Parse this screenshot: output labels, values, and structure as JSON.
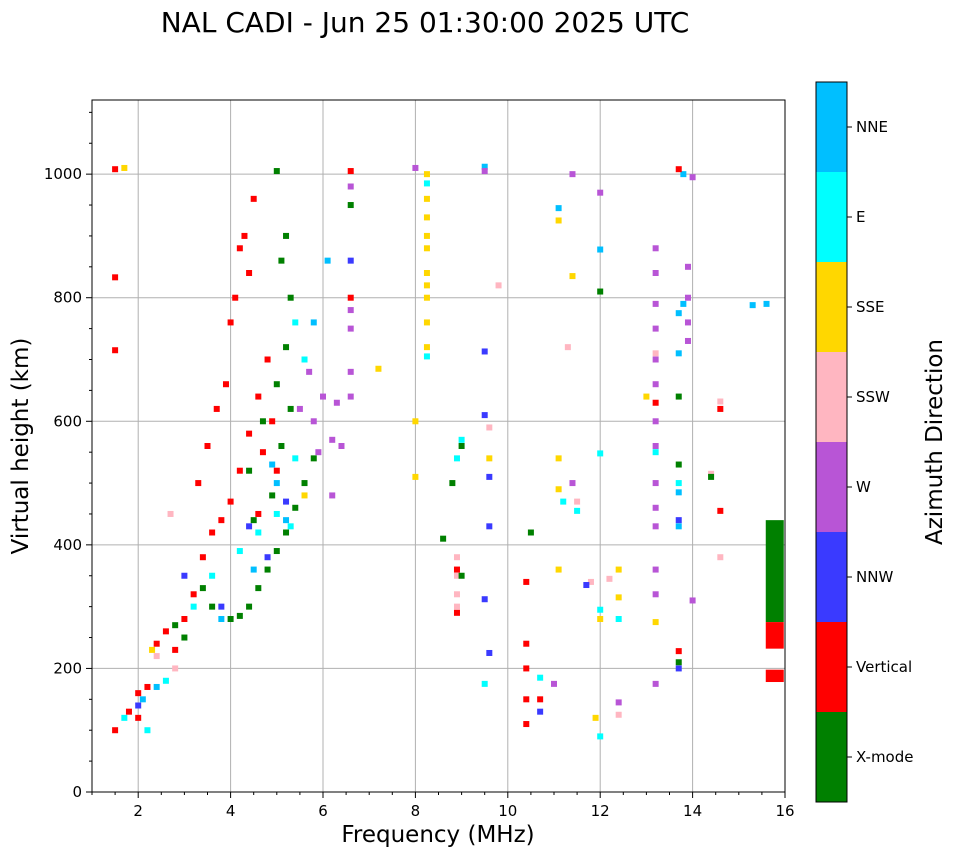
{
  "chart_data": {
    "type": "scatter",
    "title": "NAL CADI - Jun 25 01:30:00 2025 UTC",
    "xlabel": "Frequency (MHz)",
    "ylabel": "Virtual height (km)",
    "xlim": [
      1,
      16
    ],
    "ylim": [
      0,
      1120
    ],
    "xticks": [
      2,
      4,
      6,
      8,
      10,
      12,
      14,
      16
    ],
    "yticks": [
      0,
      200,
      400,
      600,
      800,
      1000
    ],
    "grid": true,
    "colorbar": {
      "label": "Azimuth Direction",
      "categories": [
        {
          "name": "X-mode",
          "color": "#008000"
        },
        {
          "name": "Vertical",
          "color": "#ff0000"
        },
        {
          "name": "NNW",
          "color": "#3a3aff"
        },
        {
          "name": "W",
          "color": "#b855d6"
        },
        {
          "name": "SSW",
          "color": "#ffb6c1"
        },
        {
          "name": "SSE",
          "color": "#ffd700"
        },
        {
          "name": "E",
          "color": "#00ffff"
        },
        {
          "name": "NNE",
          "color": "#00bfff"
        }
      ]
    },
    "series": [
      {
        "name": "X-mode",
        "points": [
          [
            4.0,
            280
          ],
          [
            4.2,
            285
          ],
          [
            4.4,
            300
          ],
          [
            4.6,
            330
          ],
          [
            4.8,
            360
          ],
          [
            5.0,
            390
          ],
          [
            5.2,
            420
          ],
          [
            5.4,
            460
          ],
          [
            5.6,
            500
          ],
          [
            5.8,
            540
          ],
          [
            4.5,
            440
          ],
          [
            4.9,
            480
          ],
          [
            5.1,
            560
          ],
          [
            5.3,
            620
          ],
          [
            4.4,
            520
          ],
          [
            4.7,
            600
          ],
          [
            5.0,
            660
          ],
          [
            5.2,
            720
          ],
          [
            5.3,
            800
          ],
          [
            5.1,
            860
          ],
          [
            5.2,
            900
          ],
          [
            2.8,
            270
          ],
          [
            3.0,
            250
          ],
          [
            3.6,
            300
          ],
          [
            3.4,
            330
          ],
          [
            9.0,
            560
          ],
          [
            9.0,
            350
          ],
          [
            8.8,
            500
          ],
          [
            8.6,
            410
          ],
          [
            10.5,
            420
          ],
          [
            12.0,
            810
          ],
          [
            13.7,
            640
          ],
          [
            13.7,
            530
          ],
          [
            13.7,
            210
          ],
          [
            14.4,
            510
          ],
          [
            6.6,
            950
          ],
          [
            5.0,
            1005
          ]
        ]
      },
      {
        "name": "Vertical",
        "points": [
          [
            1.5,
            100
          ],
          [
            1.5,
            715
          ],
          [
            1.5,
            833
          ],
          [
            1.5,
            1008
          ],
          [
            1.8,
            130
          ],
          [
            2.0,
            120
          ],
          [
            2.2,
            170
          ],
          [
            2.4,
            240
          ],
          [
            2.6,
            260
          ],
          [
            2.8,
            230
          ],
          [
            3.0,
            280
          ],
          [
            3.2,
            320
          ],
          [
            3.4,
            380
          ],
          [
            3.6,
            420
          ],
          [
            3.8,
            440
          ],
          [
            4.0,
            470
          ],
          [
            4.2,
            520
          ],
          [
            4.4,
            580
          ],
          [
            4.6,
            640
          ],
          [
            4.8,
            700
          ],
          [
            4.2,
            880
          ],
          [
            4.3,
            900
          ],
          [
            4.5,
            960
          ],
          [
            4.1,
            800
          ],
          [
            4.4,
            840
          ],
          [
            4.0,
            760
          ],
          [
            3.9,
            660
          ],
          [
            3.5,
            560
          ],
          [
            3.7,
            620
          ],
          [
            3.3,
            500
          ],
          [
            4.6,
            450
          ],
          [
            4.7,
            550
          ],
          [
            4.9,
            600
          ],
          [
            5.0,
            520
          ],
          [
            2.0,
            160
          ],
          [
            6.6,
            800
          ],
          [
            6.6,
            1005
          ],
          [
            8.9,
            290
          ],
          [
            8.9,
            360
          ],
          [
            10.4,
            340
          ],
          [
            10.4,
            240
          ],
          [
            10.4,
            200
          ],
          [
            10.4,
            150
          ],
          [
            10.4,
            110
          ],
          [
            10.7,
            150
          ],
          [
            13.2,
            630
          ],
          [
            14.6,
            620
          ],
          [
            14.6,
            455
          ],
          [
            13.7,
            228
          ],
          [
            13.7,
            1008
          ]
        ]
      },
      {
        "name": "NNW",
        "points": [
          [
            6.6,
            860
          ],
          [
            9.5,
            610
          ],
          [
            9.6,
            510
          ],
          [
            9.6,
            430
          ],
          [
            9.5,
            312
          ],
          [
            9.6,
            225
          ],
          [
            9.5,
            713
          ],
          [
            10.7,
            130
          ],
          [
            11.7,
            335
          ],
          [
            13.7,
            440
          ],
          [
            13.7,
            200
          ],
          [
            2.0,
            140
          ],
          [
            3.0,
            350
          ],
          [
            4.4,
            430
          ],
          [
            5.2,
            470
          ],
          [
            4.8,
            380
          ],
          [
            3.8,
            300
          ]
        ]
      },
      {
        "name": "W",
        "points": [
          [
            6.2,
            570
          ],
          [
            6.4,
            560
          ],
          [
            6.6,
            680
          ],
          [
            6.6,
            640
          ],
          [
            6.6,
            750
          ],
          [
            6.6,
            780
          ],
          [
            6.6,
            980
          ],
          [
            5.8,
            600
          ],
          [
            5.9,
            550
          ],
          [
            6.0,
            640
          ],
          [
            6.2,
            480
          ],
          [
            5.5,
            620
          ],
          [
            5.7,
            680
          ],
          [
            6.3,
            630
          ],
          [
            13.2,
            880
          ],
          [
            13.2,
            840
          ],
          [
            13.2,
            790
          ],
          [
            13.2,
            750
          ],
          [
            13.2,
            700
          ],
          [
            13.2,
            660
          ],
          [
            13.2,
            600
          ],
          [
            13.2,
            560
          ],
          [
            13.2,
            500
          ],
          [
            13.2,
            460
          ],
          [
            13.2,
            430
          ],
          [
            13.2,
            360
          ],
          [
            13.2,
            320
          ],
          [
            13.2,
            175
          ],
          [
            13.9,
            850
          ],
          [
            13.9,
            800
          ],
          [
            13.9,
            760
          ],
          [
            13.9,
            730
          ],
          [
            14.0,
            995
          ],
          [
            11.4,
            500
          ],
          [
            11.4,
            1000
          ],
          [
            12.0,
            970
          ],
          [
            11.0,
            175
          ],
          [
            12.4,
            145
          ],
          [
            8.0,
            1010
          ],
          [
            9.5,
            1005
          ],
          [
            14.0,
            310
          ]
        ]
      },
      {
        "name": "SSW",
        "points": [
          [
            8.9,
            380
          ],
          [
            8.9,
            350
          ],
          [
            8.9,
            320
          ],
          [
            8.9,
            300
          ],
          [
            9.6,
            590
          ],
          [
            12.2,
            345
          ],
          [
            12.4,
            125
          ],
          [
            13.2,
            710
          ],
          [
            14.4,
            515
          ],
          [
            14.6,
            380
          ],
          [
            14.6,
            632
          ],
          [
            11.3,
            720
          ],
          [
            11.5,
            470
          ],
          [
            11.8,
            340
          ],
          [
            9.8,
            820
          ],
          [
            2.4,
            220
          ],
          [
            2.8,
            200
          ],
          [
            2.7,
            450
          ]
        ]
      },
      {
        "name": "SSE",
        "points": [
          [
            8.25,
            1000
          ],
          [
            8.25,
            960
          ],
          [
            8.25,
            930
          ],
          [
            8.25,
            900
          ],
          [
            8.25,
            880
          ],
          [
            8.25,
            840
          ],
          [
            8.25,
            820
          ],
          [
            8.25,
            800
          ],
          [
            8.25,
            760
          ],
          [
            8.25,
            720
          ],
          [
            8.0,
            600
          ],
          [
            8.0,
            510
          ],
          [
            11.1,
            925
          ],
          [
            11.1,
            540
          ],
          [
            11.1,
            490
          ],
          [
            11.1,
            360
          ],
          [
            11.4,
            835
          ],
          [
            11.9,
            120
          ],
          [
            12.0,
            280
          ],
          [
            12.4,
            360
          ],
          [
            12.4,
            315
          ],
          [
            13.0,
            640
          ],
          [
            13.2,
            275
          ],
          [
            7.2,
            685
          ],
          [
            5.6,
            480
          ],
          [
            2.3,
            230
          ],
          [
            1.7,
            1010
          ],
          [
            9.6,
            540
          ]
        ]
      },
      {
        "name": "E",
        "points": [
          [
            8.25,
            705
          ],
          [
            8.25,
            985
          ],
          [
            8.9,
            540
          ],
          [
            9.0,
            570
          ],
          [
            9.5,
            175
          ],
          [
            10.7,
            185
          ],
          [
            11.2,
            470
          ],
          [
            11.5,
            455
          ],
          [
            12.0,
            548
          ],
          [
            12.0,
            295
          ],
          [
            12.4,
            280
          ],
          [
            12.0,
            90
          ],
          [
            13.2,
            550
          ],
          [
            13.7,
            500
          ],
          [
            1.7,
            120
          ],
          [
            2.2,
            100
          ],
          [
            2.6,
            180
          ],
          [
            3.2,
            300
          ],
          [
            3.6,
            350
          ],
          [
            4.2,
            390
          ],
          [
            4.6,
            420
          ],
          [
            5.0,
            450
          ],
          [
            5.3,
            430
          ],
          [
            5.4,
            540
          ],
          [
            5.6,
            700
          ],
          [
            5.4,
            760
          ]
        ]
      },
      {
        "name": "NNE",
        "points": [
          [
            9.5,
            1012
          ],
          [
            11.1,
            945
          ],
          [
            12.0,
            878
          ],
          [
            13.7,
            775
          ],
          [
            13.7,
            710
          ],
          [
            13.7,
            485
          ],
          [
            13.7,
            430
          ],
          [
            13.8,
            1000
          ],
          [
            13.8,
            790
          ],
          [
            15.3,
            788
          ],
          [
            15.6,
            790
          ],
          [
            2.1,
            150
          ],
          [
            2.4,
            170
          ],
          [
            3.8,
            280
          ],
          [
            4.5,
            360
          ],
          [
            5.0,
            500
          ],
          [
            5.2,
            440
          ],
          [
            4.9,
            530
          ],
          [
            5.8,
            760
          ],
          [
            6.1,
            860
          ]
        ]
      }
    ],
    "bars": [
      {
        "x": 15.8,
        "y0": 275,
        "y1": 440,
        "category": "X-mode"
      },
      {
        "x": 15.8,
        "y0": 232,
        "y1": 275,
        "category": "Vertical"
      },
      {
        "x": 15.8,
        "y0": 178,
        "y1": 198,
        "category": "Vertical"
      }
    ]
  }
}
